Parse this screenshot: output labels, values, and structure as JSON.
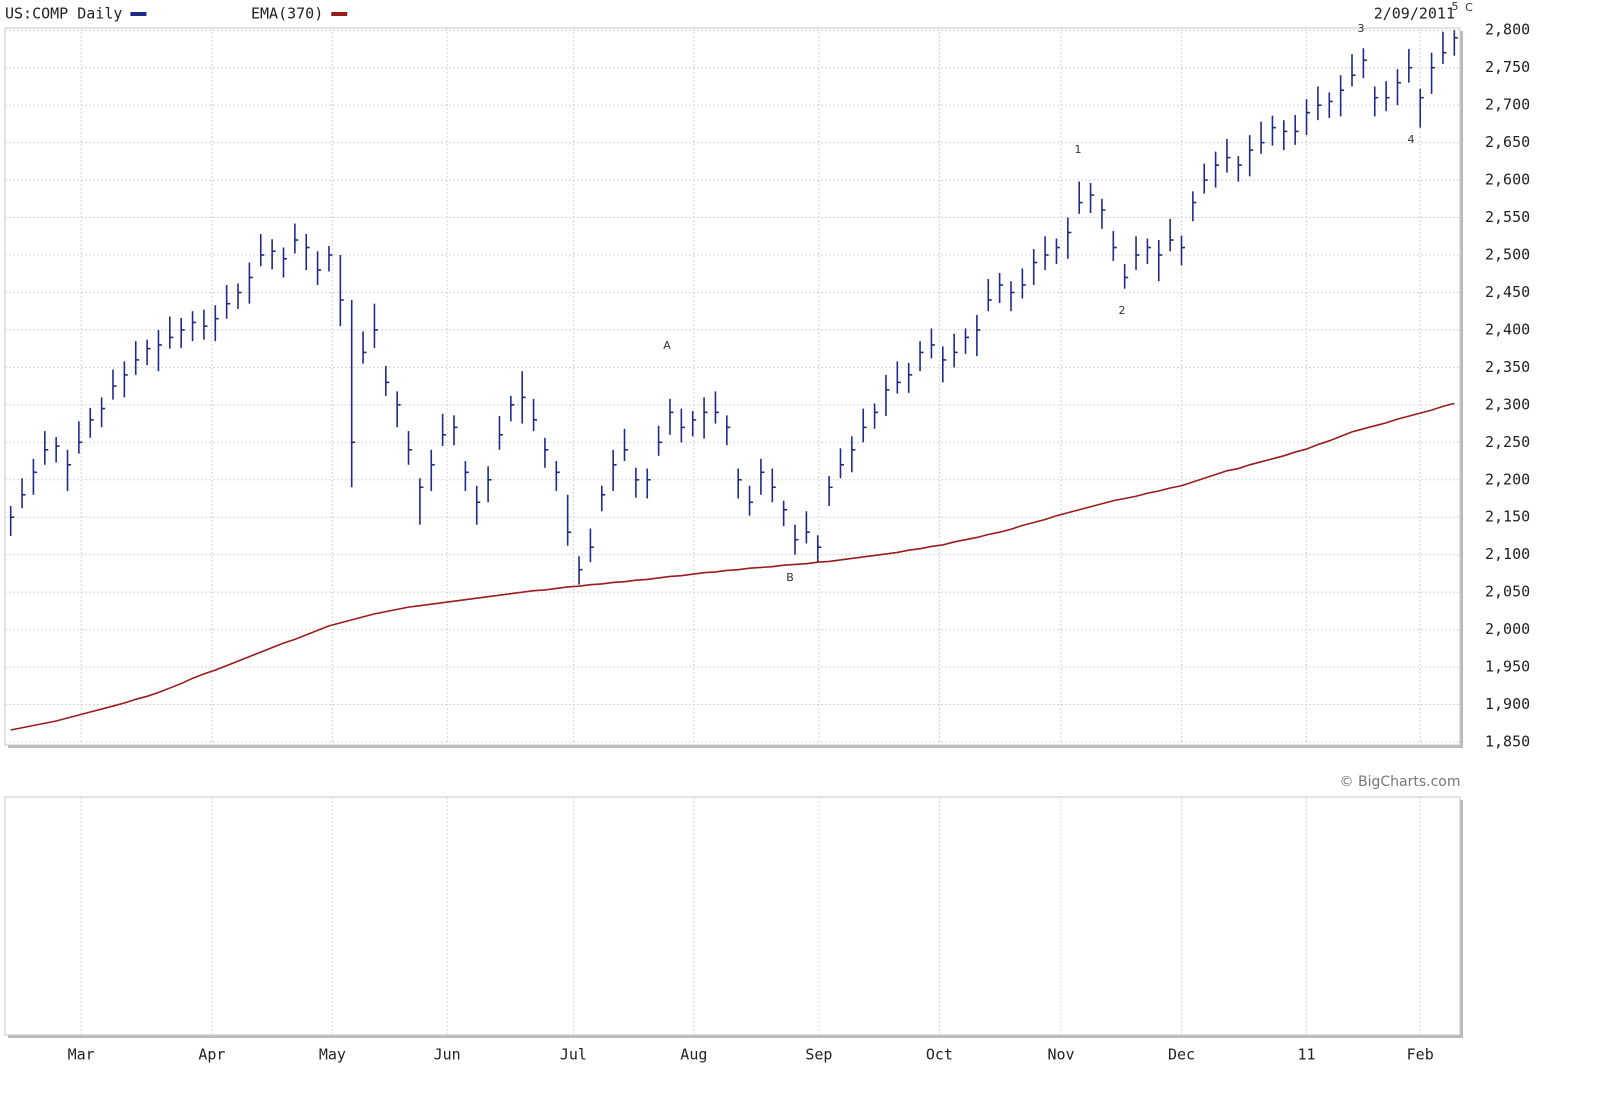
{
  "chart_data": {
    "type": "ohlc",
    "title": "US:COMP Daily",
    "date_label": "2/09/2011",
    "xlim": [
      -0.5,
      127.5
    ],
    "xticks": [
      {
        "value": 6.2,
        "label": "Mar"
      },
      {
        "value": 17.7,
        "label": "Apr"
      },
      {
        "value": 28.3,
        "label": "May"
      },
      {
        "value": 38.4,
        "label": "Jun"
      },
      {
        "value": 49.5,
        "label": "Jul"
      },
      {
        "value": 60.1,
        "label": "Aug"
      },
      {
        "value": 71.1,
        "label": "Sep"
      },
      {
        "value": 81.7,
        "label": "Oct"
      },
      {
        "value": 92.4,
        "label": "Nov"
      },
      {
        "value": 103.0,
        "label": "Dec"
      },
      {
        "value": 114.0,
        "label": "11"
      },
      {
        "value": 124.0,
        "label": "Feb"
      }
    ],
    "ylim": [
      1846,
      2803
    ],
    "yticks": [
      {
        "value": 1850,
        "label": "1,850"
      },
      {
        "value": 1900,
        "label": "1,900"
      },
      {
        "value": 1950,
        "label": "1,950"
      },
      {
        "value": 2000,
        "label": "2,000"
      },
      {
        "value": 2050,
        "label": "2,050"
      },
      {
        "value": 2100,
        "label": "2,100"
      },
      {
        "value": 2150,
        "label": "2,150"
      },
      {
        "value": 2200,
        "label": "2,200"
      },
      {
        "value": 2250,
        "label": "2,250"
      },
      {
        "value": 2300,
        "label": "2,300"
      },
      {
        "value": 2350,
        "label": "2,350"
      },
      {
        "value": 2400,
        "label": "2,400"
      },
      {
        "value": 2450,
        "label": "2,450"
      },
      {
        "value": 2500,
        "label": "2,500"
      },
      {
        "value": 2550,
        "label": "2,550"
      },
      {
        "value": 2600,
        "label": "2,600"
      },
      {
        "value": 2650,
        "label": "2,650"
      },
      {
        "value": 2700,
        "label": "2,700"
      },
      {
        "value": 2750,
        "label": "2,750"
      },
      {
        "value": 2800,
        "label": "2,800"
      }
    ],
    "grid": true,
    "series": [
      {
        "name": "US:COMP Daily",
        "color": "#1f2a8c",
        "values": [
          2150,
          2180,
          2210,
          2240,
          2245,
          2220,
          2250,
          2280,
          2295,
          2325,
          2340,
          2360,
          2375,
          2380,
          2390,
          2400,
          2410,
          2405,
          2415,
          2435,
          2450,
          2470,
          2500,
          2505,
          2495,
          2520,
          2510,
          2480,
          2500,
          2440,
          2250,
          2370,
          2400,
          2330,
          2300,
          2240,
          2190,
          2220,
          2260,
          2270,
          2210,
          2170,
          2200,
          2260,
          2300,
          2310,
          2280,
          2240,
          2210,
          2130,
          2080,
          2110,
          2180,
          2220,
          2240,
          2200,
          2200,
          2250,
          2290,
          2270,
          2280,
          2290,
          2290,
          2270,
          2200,
          2170,
          2210,
          2190,
          2160,
          2120,
          2130,
          2110,
          2190,
          2220,
          2240,
          2270,
          2290,
          2320,
          2330,
          2340,
          2370,
          2380,
          2360,
          2370,
          2390,
          2400,
          2440,
          2460,
          2450,
          2460,
          2490,
          2500,
          2510,
          2530,
          2570,
          2580,
          2560,
          2510,
          2470,
          2500,
          2510,
          2500,
          2520,
          2510,
          2570,
          2600,
          2620,
          2630,
          2620,
          2640,
          2650,
          2670,
          2665,
          2665,
          2690,
          2700,
          2705,
          2720,
          2740,
          2760,
          2710,
          2710,
          2730,
          2750,
          2710,
          2750,
          2770,
          2790
        ],
        "high": [
          2165,
          2202,
          2228,
          2265,
          2257,
          2240,
          2278,
          2296,
          2310,
          2347,
          2358,
          2385,
          2387,
          2400,
          2418,
          2416,
          2425,
          2427,
          2433,
          2460,
          2462,
          2490,
          2528,
          2521,
          2510,
          2542,
          2528,
          2505,
          2512,
          2500,
          2440,
          2398,
          2435,
          2352,
          2318,
          2265,
          2202,
          2240,
          2288,
          2286,
          2225,
          2192,
          2218,
          2285,
          2312,
          2345,
          2308,
          2256,
          2225,
          2180,
          2098,
          2135,
          2192,
          2240,
          2268,
          2216,
          2215,
          2272,
          2308,
          2295,
          2292,
          2310,
          2318,
          2286,
          2215,
          2192,
          2228,
          2215,
          2172,
          2140,
          2158,
          2126,
          2205,
          2242,
          2258,
          2295,
          2302,
          2340,
          2358,
          2356,
          2385,
          2402,
          2378,
          2395,
          2402,
          2420,
          2468,
          2476,
          2465,
          2482,
          2508,
          2525,
          2522,
          2550,
          2598,
          2596,
          2575,
          2532,
          2488,
          2525,
          2522,
          2520,
          2548,
          2526,
          2585,
          2622,
          2638,
          2655,
          2632,
          2660,
          2678,
          2686,
          2680,
          2687,
          2708,
          2725,
          2717,
          2740,
          2768,
          2776,
          2725,
          2732,
          2748,
          2775,
          2722,
          2770,
          2798,
          2800
        ],
        "low": [
          2125,
          2162,
          2180,
          2220,
          2223,
          2185,
          2235,
          2256,
          2270,
          2307,
          2310,
          2340,
          2353,
          2345,
          2375,
          2376,
          2385,
          2387,
          2385,
          2415,
          2428,
          2435,
          2485,
          2481,
          2470,
          2502,
          2480,
          2460,
          2478,
          2405,
          2190,
          2355,
          2376,
          2312,
          2270,
          2220,
          2140,
          2185,
          2245,
          2246,
          2185,
          2140,
          2170,
          2240,
          2278,
          2275,
          2265,
          2216,
          2185,
          2112,
          2060,
          2090,
          2158,
          2185,
          2225,
          2176,
          2175,
          2232,
          2260,
          2250,
          2258,
          2255,
          2275,
          2246,
          2175,
          2152,
          2180,
          2170,
          2138,
          2100,
          2115,
          2090,
          2165,
          2202,
          2210,
          2250,
          2268,
          2285,
          2315,
          2316,
          2345,
          2362,
          2330,
          2350,
          2368,
          2365,
          2425,
          2436,
          2425,
          2442,
          2460,
          2480,
          2488,
          2495,
          2555,
          2556,
          2535,
          2492,
          2455,
          2480,
          2488,
          2465,
          2505,
          2486,
          2545,
          2582,
          2590,
          2610,
          2598,
          2605,
          2635,
          2646,
          2640,
          2647,
          2660,
          2680,
          2683,
          2685,
          2725,
          2736,
          2685,
          2692,
          2700,
          2730,
          2670,
          2715,
          2755,
          2766
        ]
      },
      {
        "name": "EMA(370)",
        "color": "#9b1c1c",
        "line": true,
        "values": [
          1866,
          1869,
          1872,
          1875,
          1878,
          1882,
          1886,
          1890,
          1894,
          1898,
          1902,
          1907,
          1911,
          1916,
          1922,
          1928,
          1935,
          1941,
          1946,
          1952,
          1958,
          1964,
          1970,
          1976,
          1982,
          1987,
          1993,
          1999,
          2005,
          2009,
          2013,
          2017,
          2021,
          2024,
          2027,
          2030,
          2032,
          2034,
          2036,
          2038,
          2040,
          2042,
          2044,
          2046,
          2048,
          2050,
          2052,
          2053,
          2055,
          2057,
          2058,
          2060,
          2061,
          2063,
          2064,
          2066,
          2067,
          2069,
          2071,
          2072,
          2074,
          2076,
          2077,
          2079,
          2080,
          2082,
          2083,
          2084,
          2086,
          2087,
          2088,
          2090,
          2091,
          2093,
          2095,
          2097,
          2099,
          2101,
          2103,
          2106,
          2108,
          2111,
          2113,
          2117,
          2120,
          2123,
          2127,
          2130,
          2134,
          2139,
          2143,
          2147,
          2152,
          2156,
          2160,
          2164,
          2168,
          2172,
          2175,
          2178,
          2182,
          2185,
          2189,
          2192,
          2197,
          2202,
          2207,
          2212,
          2215,
          2220,
          2224,
          2228,
          2232,
          2237,
          2241,
          2247,
          2252,
          2258,
          2264,
          2268,
          2272,
          2276,
          2281,
          2285,
          2289,
          2293,
          2298,
          2302
        ]
      }
    ],
    "annotations": [
      {
        "text": "A"
      },
      {
        "text": "B"
      },
      {
        "text": "1"
      },
      {
        "text": "2"
      },
      {
        "text": "3"
      },
      {
        "text": "4"
      },
      {
        "text": "5"
      },
      {
        "text": "C"
      },
      {
        "text": "© BigCharts.com"
      }
    ]
  }
}
